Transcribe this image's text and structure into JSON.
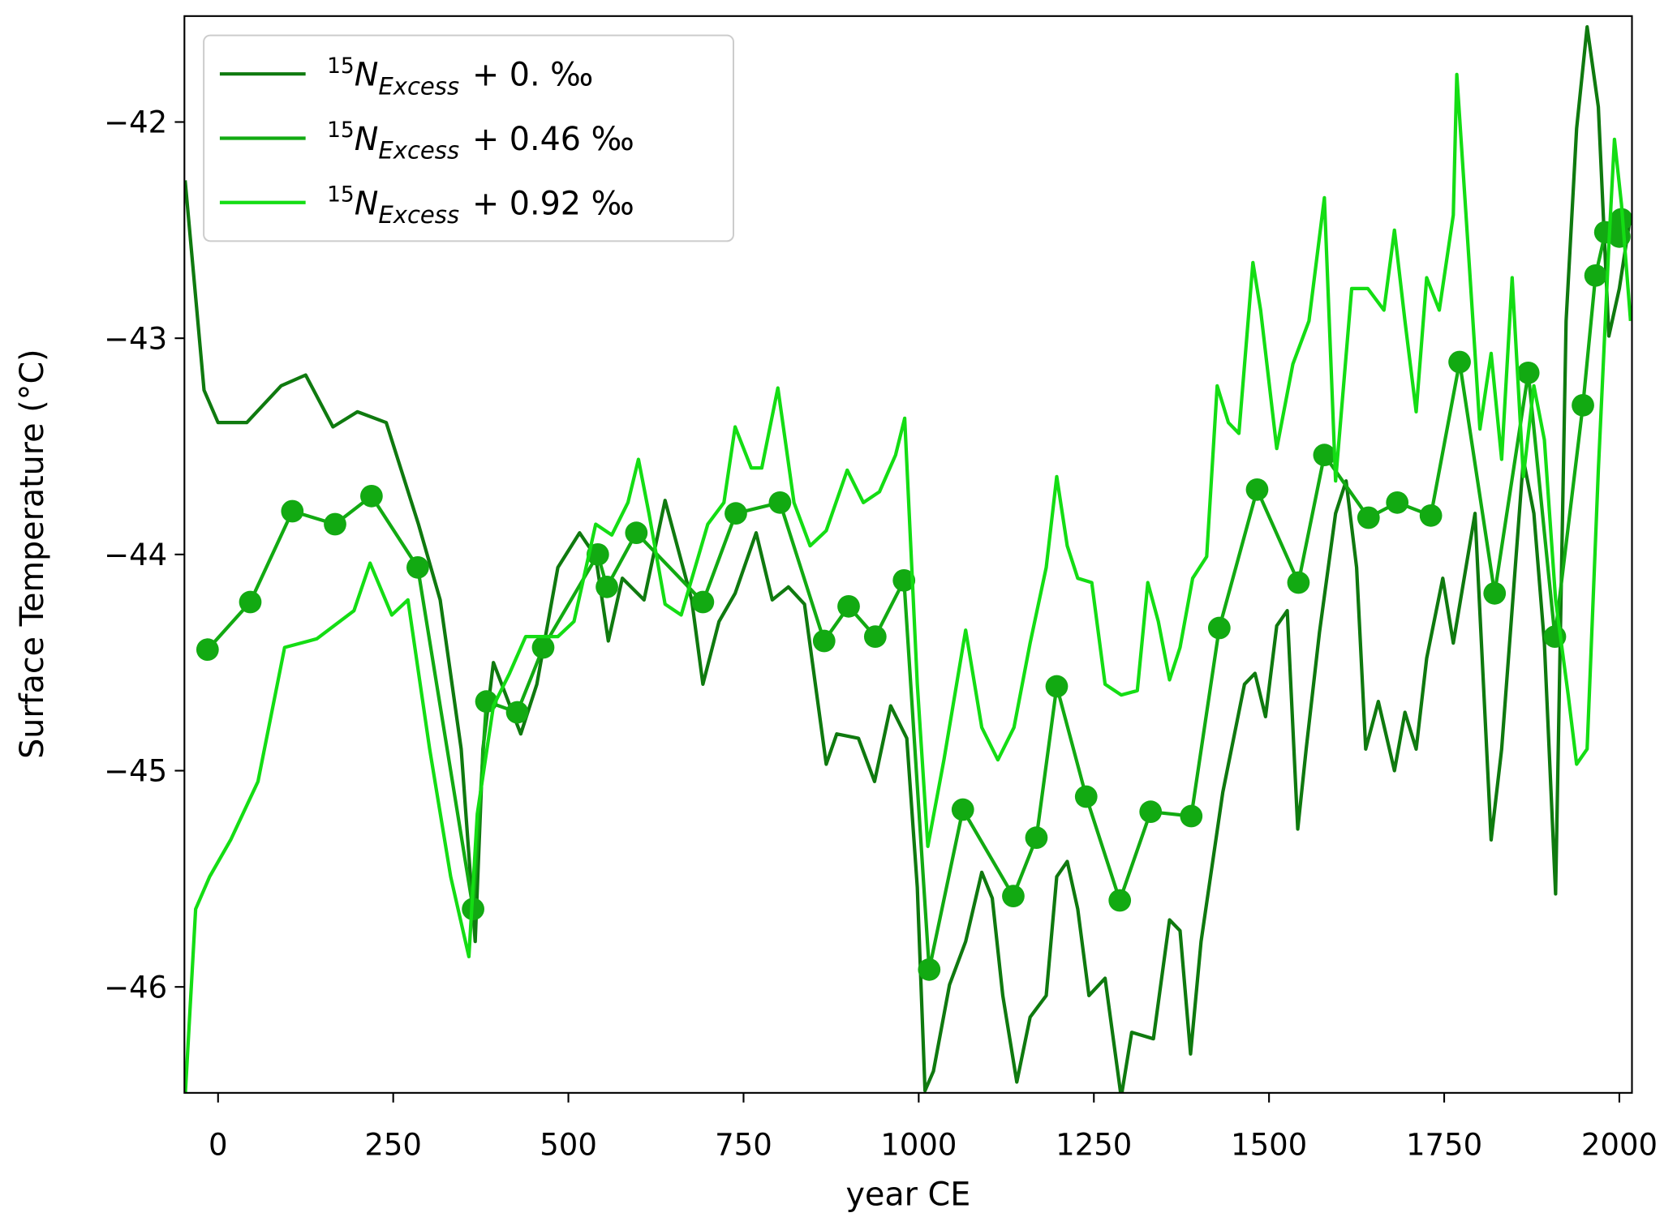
{
  "chart_data": {
    "type": "line",
    "xlabel": "year CE",
    "ylabel": "Surface Temperature (°C)",
    "xlim": [
      -48,
      2018
    ],
    "ylim": [
      -46.49,
      -41.51
    ],
    "xticks": [
      0,
      250,
      500,
      750,
      1000,
      1250,
      1500,
      1750,
      2000
    ],
    "yticks": [
      {
        "value": -42,
        "label": "−42"
      },
      {
        "value": -43,
        "label": "−43"
      },
      {
        "value": -44,
        "label": "−44"
      },
      {
        "value": -45,
        "label": "−45"
      },
      {
        "value": -46,
        "label": "−46"
      }
    ],
    "grid": false,
    "legend": "upper left",
    "series": [
      {
        "name": [
          "15",
          "N",
          "Excess",
          "+ 0. ‰"
        ],
        "color": "#0f7a0f",
        "marker": false,
        "x": [
          -47,
          -20,
          0,
          41,
          90,
          125,
          164,
          199,
          240,
          286,
          317,
          347,
          367,
          378,
          393,
          432,
          455,
          485,
          516,
          539,
          557,
          577,
          608,
          638,
          676,
          692,
          715,
          738,
          768,
          791,
          814,
          837,
          868,
          883,
          914,
          937,
          960,
          983,
          998,
          1009,
          1021,
          1044,
          1067,
          1090,
          1105,
          1120,
          1140,
          1159,
          1182,
          1197,
          1212,
          1227,
          1243,
          1266,
          1289,
          1304,
          1335,
          1358,
          1373,
          1388,
          1403,
          1434,
          1465,
          1480,
          1495,
          1511,
          1526,
          1541,
          1553,
          1572,
          1595,
          1610,
          1625,
          1638,
          1656,
          1679,
          1694,
          1710,
          1725,
          1748,
          1763,
          1794,
          1817,
          1832,
          1863,
          1878,
          1893,
          1909,
          1924,
          1939,
          1954,
          1970,
          1985,
          2000,
          2016
        ],
        "values": [
          -42.27,
          -43.24,
          -43.39,
          -43.39,
          -43.22,
          -43.17,
          -43.41,
          -43.34,
          -43.39,
          -43.86,
          -44.21,
          -44.9,
          -45.79,
          -44.9,
          -44.5,
          -44.83,
          -44.6,
          -44.06,
          -43.9,
          -44.01,
          -44.4,
          -44.11,
          -44.21,
          -43.75,
          -44.21,
          -44.6,
          -44.31,
          -44.18,
          -43.9,
          -44.21,
          -44.15,
          -44.23,
          -44.97,
          -44.83,
          -44.85,
          -45.05,
          -44.7,
          -44.85,
          -45.54,
          -46.48,
          -46.39,
          -45.99,
          -45.79,
          -45.47,
          -45.59,
          -46.04,
          -46.44,
          -46.14,
          -46.04,
          -45.49,
          -45.42,
          -45.64,
          -46.04,
          -45.96,
          -46.51,
          -46.21,
          -46.24,
          -45.69,
          -45.74,
          -46.31,
          -45.79,
          -45.1,
          -44.6,
          -44.55,
          -44.75,
          -44.33,
          -44.26,
          -45.27,
          -44.9,
          -44.36,
          -43.81,
          -43.66,
          -44.06,
          -44.9,
          -44.68,
          -45.0,
          -44.73,
          -44.9,
          -44.48,
          -44.11,
          -44.41,
          -43.81,
          -45.32,
          -44.9,
          -43.56,
          -43.81,
          -44.41,
          -45.57,
          -42.92,
          -42.03,
          -41.56,
          -41.93,
          -42.99,
          -42.77,
          -42.43
        ]
      },
      {
        "name": [
          "15",
          "N",
          "Excess",
          "+ 0.46 ‰"
        ],
        "color": "#12aa12",
        "marker": true,
        "x": [
          -15,
          46,
          106,
          167,
          219,
          285,
          364,
          383,
          427,
          464,
          542,
          555,
          597,
          692,
          739,
          802,
          865,
          900,
          938,
          979,
          1015,
          1063,
          1135,
          1168,
          1197,
          1239,
          1287,
          1331,
          1389,
          1429,
          1483,
          1542,
          1579,
          1642,
          1683,
          1731,
          1772,
          1822,
          1870,
          1908,
          1948,
          1966,
          1980,
          2000,
          2003
        ],
        "values": [
          -44.44,
          -44.22,
          -43.8,
          -43.86,
          -43.73,
          -44.06,
          -45.64,
          -44.68,
          -44.73,
          -44.43,
          -44.0,
          -44.15,
          -43.9,
          -44.22,
          -43.81,
          -43.76,
          -44.4,
          -44.24,
          -44.38,
          -44.12,
          -45.92,
          -45.18,
          -45.58,
          -45.31,
          -44.61,
          -45.12,
          -45.6,
          -45.19,
          -45.21,
          -44.34,
          -43.7,
          -44.13,
          -43.54,
          -43.83,
          -43.76,
          -43.82,
          -43.11,
          -44.18,
          -43.16,
          -44.38,
          -43.31,
          -42.71,
          -42.51,
          -42.53,
          -42.45
        ]
      },
      {
        "name": [
          "15",
          "N",
          "Excess",
          "+ 0.92 ‰"
        ],
        "color": "#14dd14",
        "marker": false,
        "x": [
          -47,
          -32,
          -12,
          18,
          57,
          95,
          141,
          194,
          217,
          248,
          271,
          302,
          332,
          358,
          370,
          393,
          416,
          439,
          485,
          508,
          539,
          562,
          585,
          600,
          615,
          638,
          661,
          699,
          722,
          738,
          761,
          776,
          799,
          822,
          845,
          868,
          898,
          921,
          944,
          967,
          980,
          998,
          1013,
          1036,
          1067,
          1090,
          1113,
          1136,
          1159,
          1182,
          1197,
          1212,
          1227,
          1247,
          1266,
          1289,
          1312,
          1327,
          1342,
          1358,
          1373,
          1391,
          1411,
          1426,
          1442,
          1457,
          1477,
          1488,
          1511,
          1534,
          1557,
          1579,
          1595,
          1618,
          1641,
          1664,
          1679,
          1694,
          1710,
          1725,
          1743,
          1763,
          1768,
          1786,
          1801,
          1817,
          1832,
          1847,
          1863,
          1878,
          1893,
          1909,
          1927,
          1939,
          1954,
          1970,
          1985,
          1993,
          2003,
          2016
        ],
        "values": [
          -46.51,
          -45.64,
          -45.49,
          -45.32,
          -45.05,
          -44.43,
          -44.39,
          -44.26,
          -44.04,
          -44.28,
          -44.21,
          -44.9,
          -45.49,
          -45.86,
          -45.2,
          -44.7,
          -44.55,
          -44.38,
          -44.38,
          -44.31,
          -43.86,
          -43.91,
          -43.76,
          -43.56,
          -43.81,
          -44.23,
          -44.28,
          -43.86,
          -43.76,
          -43.41,
          -43.6,
          -43.6,
          -43.23,
          -43.76,
          -43.96,
          -43.89,
          -43.61,
          -43.76,
          -43.71,
          -43.54,
          -43.37,
          -44.6,
          -45.35,
          -44.95,
          -44.35,
          -44.8,
          -44.95,
          -44.8,
          -44.41,
          -44.06,
          -43.64,
          -43.96,
          -44.11,
          -44.13,
          -44.6,
          -44.65,
          -44.63,
          -44.13,
          -44.31,
          -44.58,
          -44.43,
          -44.11,
          -44.01,
          -43.22,
          -43.39,
          -43.44,
          -42.65,
          -42.87,
          -43.51,
          -43.12,
          -42.92,
          -42.35,
          -43.66,
          -42.77,
          -42.77,
          -42.87,
          -42.5,
          -42.92,
          -43.34,
          -42.72,
          -42.87,
          -42.43,
          -41.78,
          -42.67,
          -43.42,
          -43.07,
          -43.56,
          -42.72,
          -43.64,
          -43.22,
          -43.47,
          -44.21,
          -44.65,
          -44.97,
          -44.9,
          -43.61,
          -42.57,
          -42.08,
          -42.38,
          -42.92
        ]
      }
    ]
  }
}
